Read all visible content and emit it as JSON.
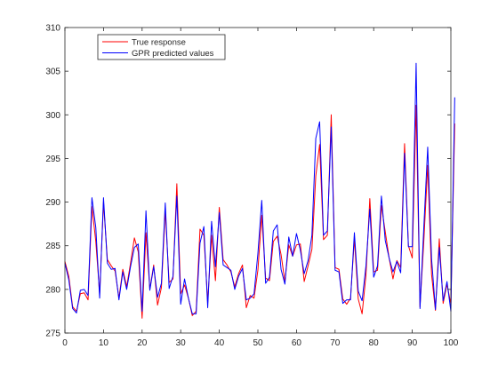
{
  "chart_data": {
    "type": "line",
    "xlim": [
      0,
      100
    ],
    "ylim": [
      275,
      310
    ],
    "x_ticks": [
      "0",
      "10",
      "20",
      "30",
      "40",
      "50",
      "60",
      "70",
      "80",
      "90",
      "100"
    ],
    "y_ticks": [
      "275",
      "280",
      "285",
      "290",
      "295",
      "300",
      "305",
      "310"
    ],
    "grid": false,
    "legend_position": "top-left",
    "series": [
      {
        "name": "True response",
        "color": "#ff0000",
        "values": [
          283.2,
          281.5,
          278.0,
          277.5,
          279.5,
          279.6,
          278.8,
          289.5,
          285.5,
          279.5,
          290.0,
          283.4,
          282.7,
          282.1,
          279.0,
          282.3,
          280.3,
          283.0,
          285.9,
          284.3,
          276.7,
          286.5,
          280.0,
          282.8,
          278.2,
          280.2,
          289.0,
          280.8,
          281.2,
          292.1,
          279.5,
          280.5,
          279.0,
          277.0,
          277.5,
          286.9,
          286.2,
          278.5,
          286.2,
          281.0,
          289.4,
          283.4,
          282.8,
          282.0,
          280.3,
          281.8,
          282.8,
          277.9,
          279.3,
          279.0,
          282.2,
          288.5,
          281.3,
          281.0,
          285.5,
          286.1,
          284.0,
          280.9,
          285.1,
          283.8,
          285.1,
          285.2,
          280.9,
          282.7,
          284.6,
          293.0,
          296.6,
          285.7,
          286.2,
          300.0,
          282.5,
          282.3,
          278.9,
          278.3,
          279.0,
          285.8,
          278.9,
          277.2,
          281.6,
          290.4,
          282.0,
          282.2,
          289.6,
          286.6,
          283.6,
          281.2,
          283.3,
          282.5,
          296.7,
          285.0,
          283.6,
          301.1,
          278.0,
          285.6,
          294.2,
          281.7,
          277.6,
          285.8,
          278.4,
          280.6,
          278.3,
          299.0
        ]
      },
      {
        "name": "GPR predicted values",
        "color": "#0000ff",
        "values": [
          283.0,
          281.1,
          277.8,
          277.3,
          279.9,
          280.0,
          279.3,
          290.5,
          287.1,
          279.0,
          290.5,
          283.0,
          282.3,
          282.4,
          278.8,
          282.0,
          280.0,
          282.6,
          284.8,
          285.2,
          277.5,
          289.0,
          279.9,
          282.6,
          279.1,
          280.7,
          289.9,
          280.1,
          281.5,
          290.7,
          278.3,
          281.2,
          279.0,
          277.2,
          277.2,
          285.3,
          287.2,
          277.9,
          287.8,
          282.6,
          288.8,
          282.8,
          282.5,
          282.2,
          280.0,
          281.5,
          282.4,
          278.8,
          279.0,
          279.5,
          284.1,
          290.2,
          280.7,
          281.4,
          286.7,
          287.4,
          282.3,
          280.6,
          286.0,
          283.8,
          286.4,
          284.5,
          281.8,
          283.3,
          286.2,
          297.3,
          299.2,
          286.2,
          286.7,
          298.6,
          282.2,
          282.0,
          278.4,
          278.8,
          278.8,
          286.5,
          279.8,
          278.7,
          282.7,
          289.2,
          281.4,
          282.7,
          290.7,
          285.6,
          283.6,
          282.0,
          283.2,
          281.9,
          295.6,
          284.9,
          284.9,
          305.9,
          277.8,
          287.2,
          296.3,
          283.5,
          277.7,
          284.8,
          278.7,
          280.9,
          277.5,
          302.0
        ]
      }
    ]
  }
}
